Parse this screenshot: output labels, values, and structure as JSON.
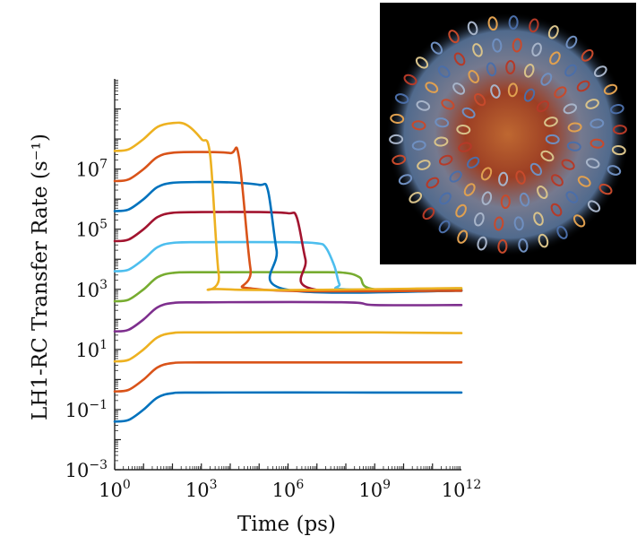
{
  "chart_data": {
    "type": "line",
    "title": "",
    "xlabel": "Time (ps)",
    "ylabel": "LH1-RC Transfer Rate (s⁻¹)",
    "x_scale": "log",
    "y_scale": "log",
    "xlim": [
      1,
      1000000000000
    ],
    "ylim": [
      0.001,
      10000000000
    ],
    "grid": false,
    "x_ticks": [
      {
        "base": "10",
        "exp": "0"
      },
      {
        "base": "10",
        "exp": "3"
      },
      {
        "base": "10",
        "exp": "6"
      },
      {
        "base": "10",
        "exp": "9"
      },
      {
        "base": "10",
        "exp": "12"
      }
    ],
    "y_ticks": [
      {
        "base": "10",
        "exp": "−3"
      },
      {
        "base": "10",
        "exp": "−1"
      },
      {
        "base": "10",
        "exp": "1"
      },
      {
        "base": "10",
        "exp": "3"
      },
      {
        "base": "10",
        "exp": "5"
      },
      {
        "base": "10",
        "exp": "7"
      }
    ],
    "x_tick_values": [
      1,
      1000,
      1000000,
      1000000000,
      1000000000000
    ],
    "y_tick_values": [
      0.001,
      0.1,
      10,
      1000,
      100000,
      10000000
    ],
    "series": [
      {
        "color": "#0072BD",
        "x": [
          1,
          3,
          10,
          30,
          100,
          1000,
          1000000000,
          1000000000000
        ],
        "y": [
          0.04,
          0.045,
          0.1,
          0.25,
          0.35,
          0.37,
          0.37,
          0.37
        ]
      },
      {
        "color": "#D95319",
        "x": [
          1,
          3,
          10,
          30,
          100,
          1000,
          1000000000,
          1000000000000
        ],
        "y": [
          0.4,
          0.45,
          1.0,
          2.5,
          3.5,
          3.7,
          3.7,
          3.7
        ]
      },
      {
        "color": "#EDB120",
        "x": [
          1,
          3,
          10,
          30,
          100,
          1000,
          1000000000,
          1000000000000
        ],
        "y": [
          4,
          4.5,
          10,
          25,
          35,
          37,
          37,
          35
        ]
      },
      {
        "color": "#7E2F8E",
        "x": [
          1,
          3,
          10,
          30,
          100,
          1000,
          100000000,
          1000000000,
          1000000000000
        ],
        "y": [
          40,
          45,
          100,
          250,
          350,
          370,
          370,
          300,
          300
        ]
      },
      {
        "color": "#77AC30",
        "x": [
          1,
          3,
          10,
          30,
          100,
          1000,
          10000000,
          100000000,
          300000000,
          1000000000,
          1000000000000
        ],
        "y": [
          400,
          450,
          1000,
          2500,
          3500,
          3700,
          3700,
          3500,
          2500,
          1000,
          1000
        ]
      },
      {
        "color": "#4DBEEE",
        "x": [
          1,
          3,
          10,
          30,
          100,
          1000,
          1000000,
          10000000,
          20000000,
          40000000,
          60000000,
          100000000,
          1000000000000
        ],
        "y": [
          4000,
          4500,
          10000,
          25000,
          35000,
          37000,
          37000,
          34000,
          25000,
          6000,
          1500,
          1000,
          900
        ]
      },
      {
        "color": "#A2142F",
        "x": [
          1,
          3,
          10,
          30,
          100,
          1000,
          100000,
          1000000,
          2000000,
          4000000,
          8000000,
          1000000000000
        ],
        "y": [
          40000,
          45000,
          100000,
          250000,
          350000,
          370000,
          370000,
          340000,
          250000,
          10000,
          1000,
          900
        ]
      },
      {
        "color": "#0072BD",
        "x": [
          1,
          3,
          10,
          30,
          100,
          1000,
          10000,
          100000,
          200000,
          400000,
          800000,
          1000000000000
        ],
        "y": [
          400000,
          450000,
          1000000,
          2500000,
          3500000,
          3700000,
          3600000,
          3000000,
          2000000,
          20000,
          1000,
          900
        ]
      },
      {
        "color": "#D95319",
        "x": [
          1,
          3,
          10,
          30,
          100,
          1000,
          10000,
          20000,
          50000,
          100000,
          1000000000000
        ],
        "y": [
          4000000,
          4500000,
          10000000,
          25000000,
          35000000,
          37000000,
          34000000,
          25000000,
          5000,
          1000,
          900
        ]
      },
      {
        "color": "#EDB120",
        "x": [
          1,
          3,
          10,
          30,
          100,
          300,
          1000,
          2000,
          4000,
          8000,
          1000000000000
        ],
        "y": [
          40000000,
          45000000,
          100000000,
          250000000,
          340000000,
          300000000,
          100000000,
          30000000,
          3000,
          1000,
          1100
        ]
      }
    ]
  },
  "inset": {
    "description_name": "protein-structure-image",
    "background": "#000000"
  }
}
